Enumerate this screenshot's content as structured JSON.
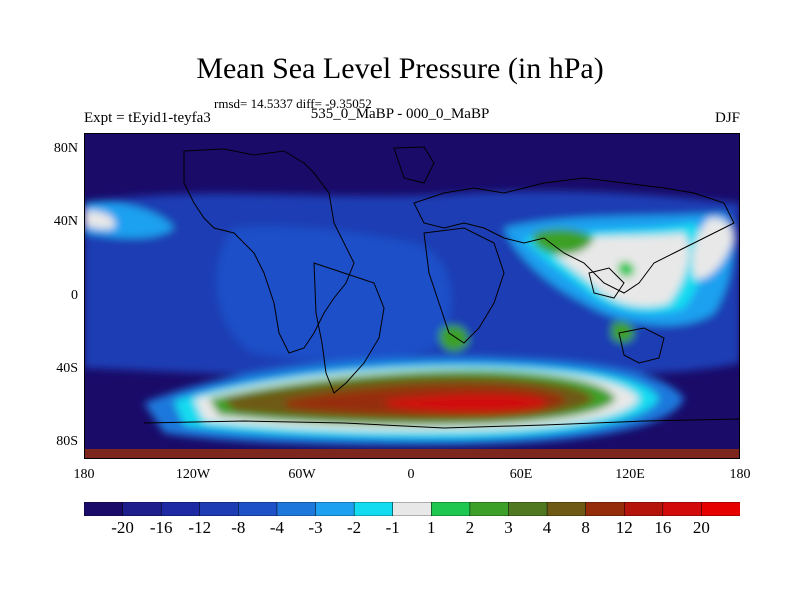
{
  "title": "Mean Sea Level Pressure (in hPa)",
  "stats_text": "rmsd= 14.5337 diff= -9.35052",
  "left_label": "Expt = tEyid1-teyfa3",
  "center_label": "535_0_MaBP - 000_0_MaBP",
  "right_label": "DJF",
  "lat_labels": [
    "80N",
    "40N",
    "0",
    "40S",
    "80S"
  ],
  "lon_labels": [
    "180",
    "120W",
    "60W",
    "0",
    "60E",
    "120E",
    "180"
  ],
  "colorbar": {
    "labels": [
      "-20",
      "-16",
      "-12",
      "-8",
      "-4",
      "-3",
      "-2",
      "-1",
      "1",
      "2",
      "3",
      "4",
      "8",
      "12",
      "16",
      "20"
    ],
    "colors": [
      "#1a0b69",
      "#1e1e8c",
      "#1e2aa4",
      "#1e3cb4",
      "#1e50c8",
      "#1e78dc",
      "#1ea0f0",
      "#14dcf0",
      "#e8e8e8",
      "#1ec850",
      "#3ca028",
      "#507820",
      "#6e5a14",
      "#962d0a",
      "#b4140a",
      "#d20a0a",
      "#e60000"
    ]
  },
  "background_color": "#1a0b69"
}
